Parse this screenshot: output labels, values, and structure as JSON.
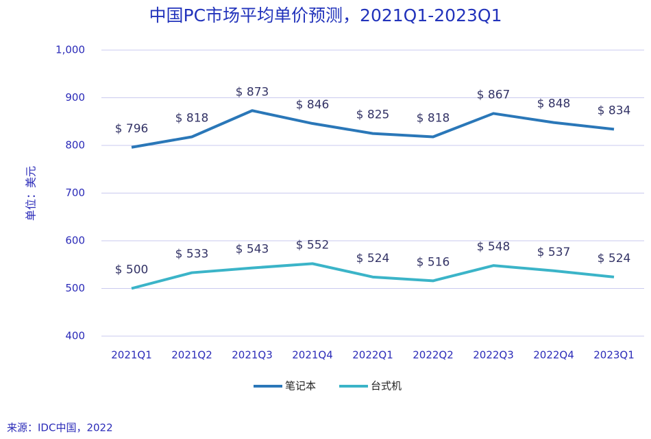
{
  "chart_data": {
    "type": "line",
    "title": "中国PC市场平均单价预测，2021Q1-2023Q1",
    "y_label": "单位：美元",
    "source": "来源：IDC中国，2022",
    "categories": [
      "2021Q1",
      "2021Q2",
      "2021Q3",
      "2021Q4",
      "2022Q1",
      "2022Q2",
      "2022Q3",
      "2022Q4",
      "2023Q1"
    ],
    "series": [
      {
        "name": "笔记本",
        "color": "#2a77b8",
        "values": [
          796,
          818,
          873,
          846,
          825,
          818,
          867,
          848,
          834
        ],
        "value_labels": [
          "$ 796",
          "$ 818",
          "$ 873",
          "$ 846",
          "$ 825",
          "$ 818",
          "$ 867",
          "$ 848",
          "$ 834"
        ]
      },
      {
        "name": "台式机",
        "color": "#3bb4c8",
        "values": [
          500,
          533,
          543,
          552,
          524,
          516,
          548,
          537,
          524
        ],
        "value_labels": [
          "$ 500",
          "$ 533",
          "$ 543",
          "$ 552",
          "$ 524",
          "$ 516",
          "$ 548",
          "$ 537",
          "$ 524"
        ]
      }
    ],
    "ylim": [
      400,
      1000
    ],
    "yticks": [
      400,
      500,
      600,
      700,
      800,
      900,
      {
        "value": 1000,
        "label": "1,000"
      }
    ],
    "grid": true
  }
}
